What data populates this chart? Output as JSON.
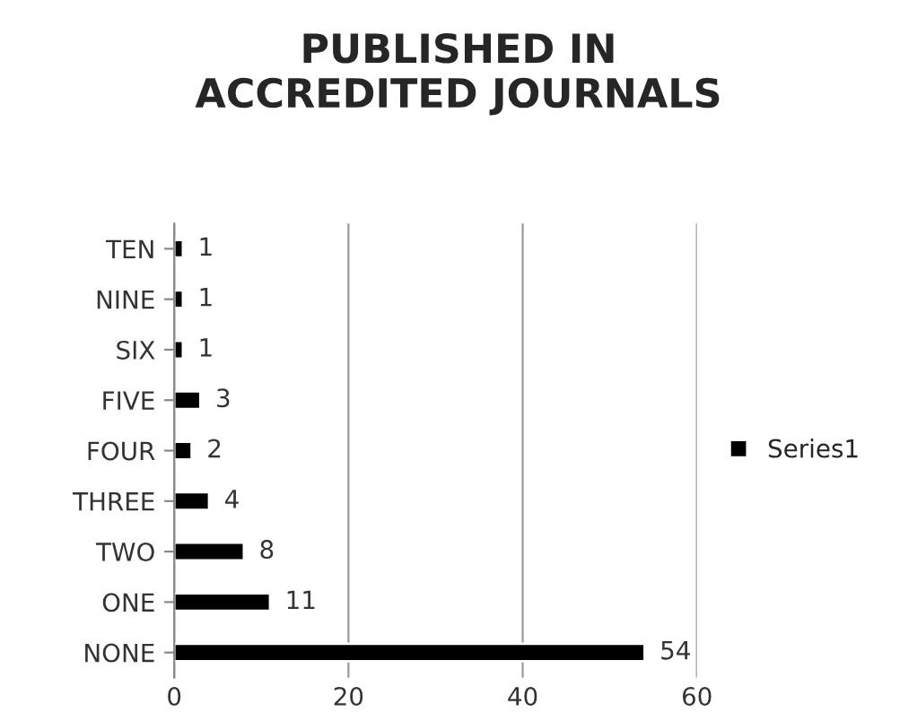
{
  "chart_data": {
    "type": "bar",
    "orientation": "horizontal",
    "title": "PUBLISHED IN\nACCREDITED JOURNALS",
    "categories": [
      "TEN",
      "NINE",
      "SIX",
      "FIVE",
      "FOUR",
      "THREE",
      "TWO",
      "ONE",
      "NONE"
    ],
    "series": [
      {
        "name": "Series1",
        "color": "#000000",
        "values": [
          1,
          1,
          1,
          3,
          2,
          4,
          8,
          11,
          54
        ]
      }
    ],
    "xlim": [
      0,
      60
    ],
    "xticks": [
      0,
      20,
      40,
      60
    ],
    "grid": "x",
    "legend": "right",
    "data_labels": true
  }
}
